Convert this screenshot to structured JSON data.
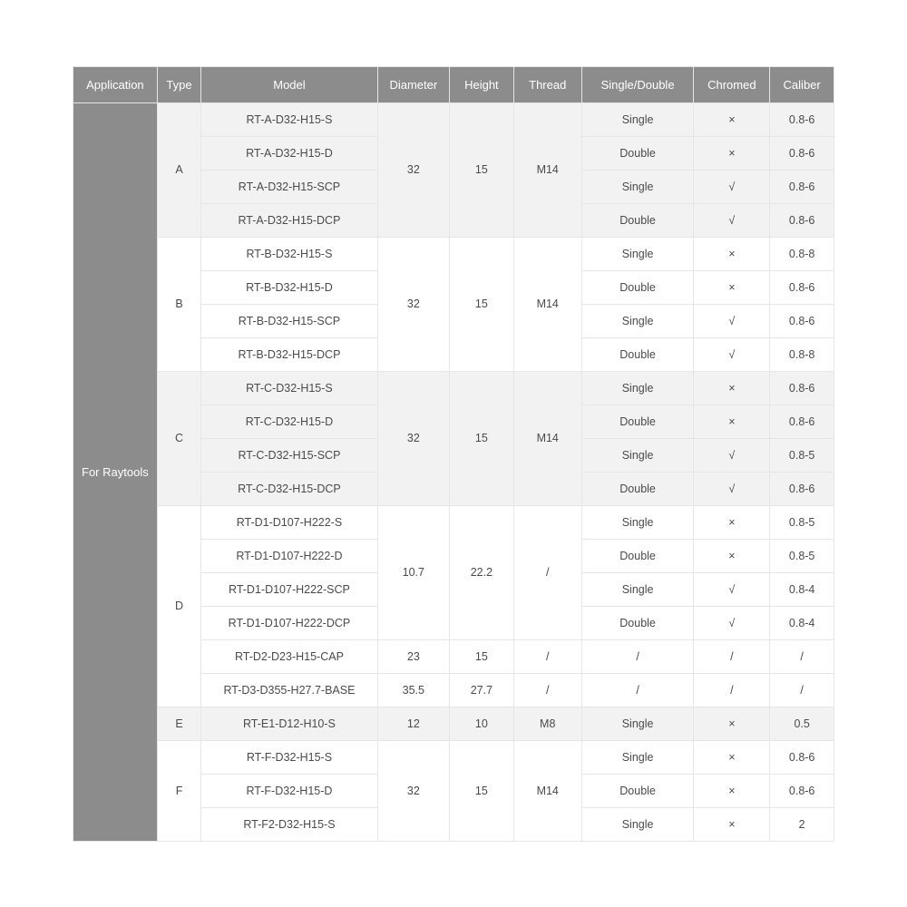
{
  "columns": [
    "Application",
    "Type",
    "Model",
    "Diameter",
    "Height",
    "Thread",
    "Single/Double",
    "Chromed",
    "Caliber"
  ],
  "application_label": "For Raytools",
  "application_rowspan": 22,
  "groups": [
    {
      "type": "A",
      "shade": true,
      "diameter": "32",
      "height": "15",
      "thread": "M14",
      "merge_span": 4,
      "rows": [
        {
          "model": "RT-A-D32-H15-S",
          "sd": "Single",
          "chromed": "×",
          "caliber": "0.8-6"
        },
        {
          "model": "RT-A-D32-H15-D",
          "sd": "Double",
          "chromed": "×",
          "caliber": "0.8-6"
        },
        {
          "model": "RT-A-D32-H15-SCP",
          "sd": "Single",
          "chromed": "√",
          "caliber": "0.8-6"
        },
        {
          "model": "RT-A-D32-H15-DCP",
          "sd": "Double",
          "chromed": "√",
          "caliber": "0.8-6"
        }
      ]
    },
    {
      "type": "B",
      "shade": false,
      "diameter": "32",
      "height": "15",
      "thread": "M14",
      "merge_span": 4,
      "rows": [
        {
          "model": "RT-B-D32-H15-S",
          "sd": "Single",
          "chromed": "×",
          "caliber": "0.8-8"
        },
        {
          "model": "RT-B-D32-H15-D",
          "sd": "Double",
          "chromed": "×",
          "caliber": "0.8-6"
        },
        {
          "model": "RT-B-D32-H15-SCP",
          "sd": "Single",
          "chromed": "√",
          "caliber": "0.8-6"
        },
        {
          "model": "RT-B-D32-H15-DCP",
          "sd": "Double",
          "chromed": "√",
          "caliber": "0.8-8"
        }
      ]
    },
    {
      "type": "C",
      "shade": true,
      "diameter": "32",
      "height": "15",
      "thread": "M14",
      "merge_span": 4,
      "rows": [
        {
          "model": "RT-C-D32-H15-S",
          "sd": "Single",
          "chromed": "×",
          "caliber": "0.8-6"
        },
        {
          "model": "RT-C-D32-H15-D",
          "sd": "Double",
          "chromed": "×",
          "caliber": "0.8-6"
        },
        {
          "model": "RT-C-D32-H15-SCP",
          "sd": "Single",
          "chromed": "√",
          "caliber": "0.8-5"
        },
        {
          "model": "RT-C-D32-H15-DCP",
          "sd": "Double",
          "chromed": "√",
          "caliber": "0.8-6"
        }
      ]
    },
    {
      "type": "D",
      "shade": false,
      "type_rowspan": 6,
      "subblocks": [
        {
          "diameter": "10.7",
          "height": "22.2",
          "thread": "/",
          "merge_span": 4,
          "rows": [
            {
              "model": "RT-D1-D107-H222-S",
              "sd": "Single",
              "chromed": "×",
              "caliber": "0.8-5"
            },
            {
              "model": "RT-D1-D107-H222-D",
              "sd": "Double",
              "chromed": "×",
              "caliber": "0.8-5"
            },
            {
              "model": "RT-D1-D107-H222-SCP",
              "sd": "Single",
              "chromed": "√",
              "caliber": "0.8-4"
            },
            {
              "model": "RT-D1-D107-H222-DCP",
              "sd": "Double",
              "chromed": "√",
              "caliber": "0.8-4"
            }
          ]
        },
        {
          "single_rows": [
            {
              "model": "RT-D2-D23-H15-CAP",
              "diameter": "23",
              "height": "15",
              "thread": "/",
              "sd": "/",
              "chromed": "/",
              "caliber": "/"
            },
            {
              "model": "RT-D3-D355-H27.7-BASE",
              "diameter": "35.5",
              "height": "27.7",
              "thread": "/",
              "sd": "/",
              "chromed": "/",
              "caliber": "/"
            }
          ]
        }
      ]
    },
    {
      "type": "E",
      "shade": true,
      "type_rowspan": 1,
      "single_rows": [
        {
          "model": "RT-E1-D12-H10-S",
          "diameter": "12",
          "height": "10",
          "thread": "M8",
          "sd": "Single",
          "chromed": "×",
          "caliber": "0.5"
        }
      ]
    },
    {
      "type": "F",
      "shade": false,
      "diameter": "32",
      "height": "15",
      "thread": "M14",
      "merge_span": 3,
      "rows": [
        {
          "model": "RT-F-D32-H15-S",
          "sd": "Single",
          "chromed": "×",
          "caliber": "0.8-6"
        },
        {
          "model": "RT-F-D32-H15-D",
          "sd": "Double",
          "chromed": "×",
          "caliber": "0.8-6"
        },
        {
          "model": "RT-F2-D32-H15-S",
          "sd": "Single",
          "chromed": "×",
          "caliber": "2"
        }
      ]
    }
  ],
  "style": {
    "header_bg": "#8c8c8c",
    "header_fg": "#ffffff",
    "cell_fg": "#4a4a4a",
    "border": "#e6e6e6",
    "shade_bg": "#f2f2f2",
    "plain_bg": "#ffffff",
    "font_size_header": 13,
    "font_size_cell": 12.5
  }
}
